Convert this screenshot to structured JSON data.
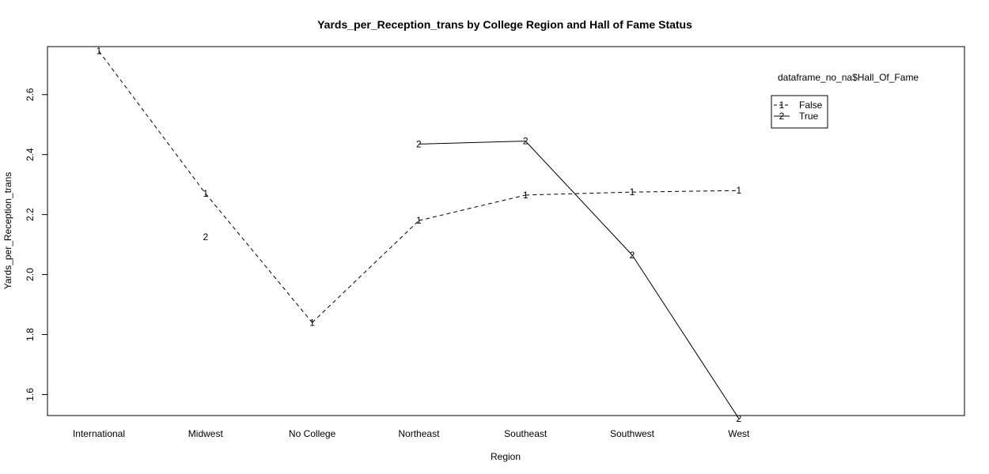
{
  "chart_data": {
    "type": "line",
    "title": "Yards_per_Reception_trans by College Region and Hall of Fame Status",
    "xlabel": "Region",
    "ylabel": "Yards_per_Reception_trans",
    "categories": [
      "International",
      "Midwest",
      "No College",
      "Northeast",
      "Southeast",
      "Southwest",
      "West"
    ],
    "ylim": [
      1.53,
      2.76
    ],
    "yticks": [
      1.6,
      1.8,
      2.0,
      2.2,
      2.4,
      2.6
    ],
    "ytick_labels": [
      "1.6",
      "1.8",
      "2.0",
      "2.2",
      "2.4",
      "2.6"
    ],
    "legend_title": "dataframe_no_na$Hall_Of_Fame",
    "series": [
      {
        "name": "False",
        "symbol": "1",
        "line_style": "dashed",
        "values": [
          2.745,
          2.27,
          1.84,
          2.18,
          2.265,
          2.275,
          2.28
        ]
      },
      {
        "name": "True",
        "symbol": "2",
        "line_style": "solid",
        "values": [
          null,
          2.125,
          null,
          2.435,
          2.445,
          2.065,
          1.52
        ]
      }
    ]
  }
}
